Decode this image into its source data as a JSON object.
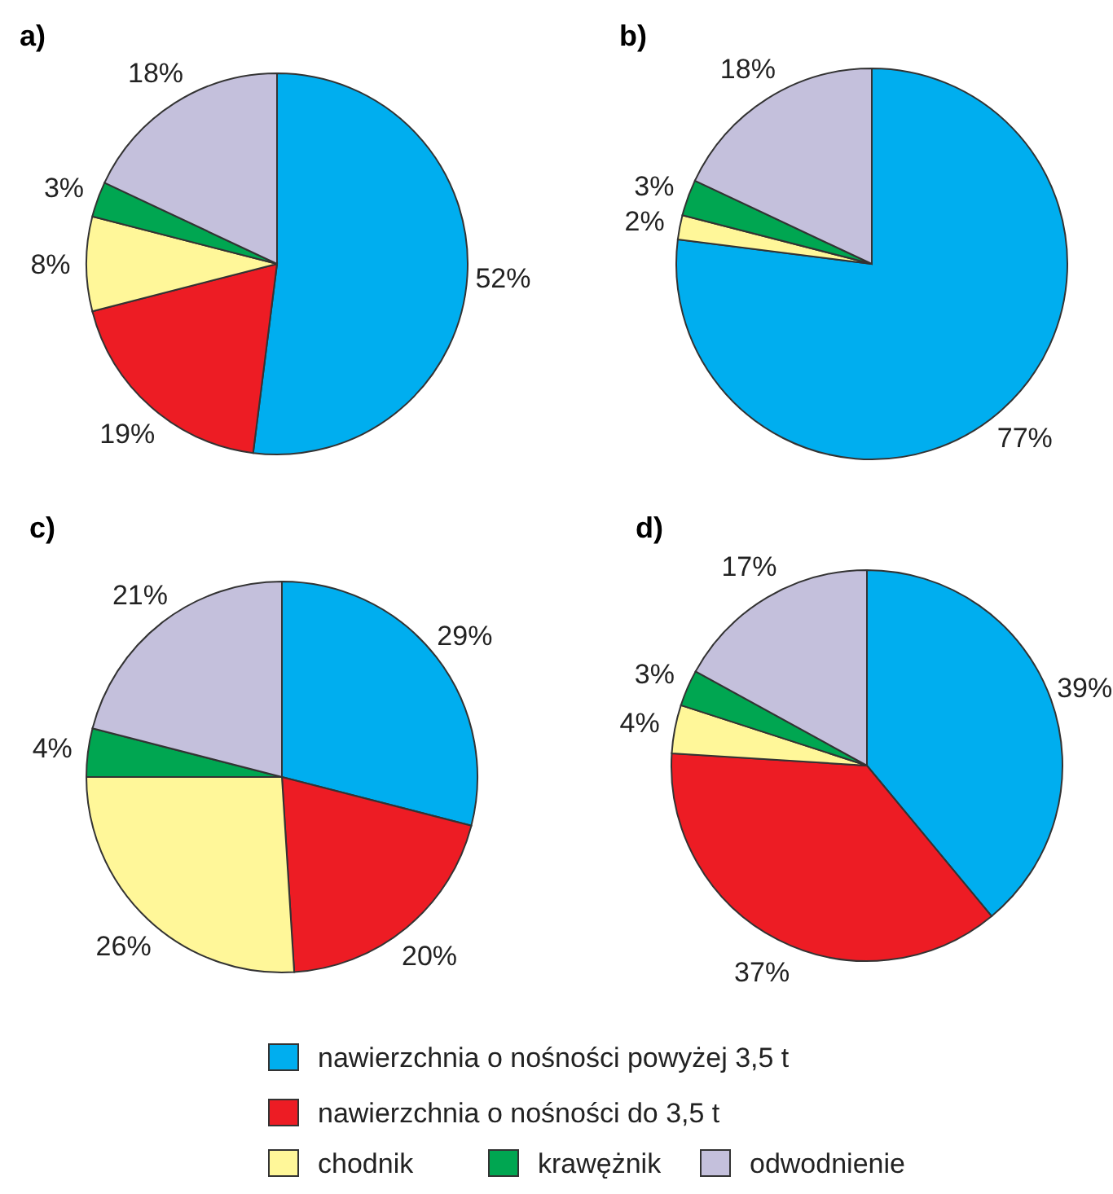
{
  "chart_data": [
    {
      "type": "pie",
      "title": "a)",
      "categories": [
        "nawierzchnia o nośności powyżej 3,5 t",
        "nawierzchnia o nośności do 3,5 t",
        "chodnik",
        "krawężnik",
        "odwodnienie"
      ],
      "values": [
        52,
        19,
        8,
        3,
        18
      ],
      "value_labels": [
        "52%",
        "19%",
        "8%",
        "3%",
        "18%"
      ],
      "colors": [
        "#00aeef",
        "#ed1c24",
        "#fff799",
        "#00a651",
        "#c4c0dc"
      ],
      "legend": "bottom"
    },
    {
      "type": "pie",
      "title": "b)",
      "categories": [
        null,
        null,
        null,
        null
      ],
      "values": [
        77,
        2,
        3,
        18
      ],
      "value_labels": [
        "77%",
        "2%",
        "3%",
        "18%"
      ],
      "colors": [
        "#00aeef",
        "#fff799",
        "#00a651",
        "#c4c0dc"
      ]
    },
    {
      "type": "pie",
      "title": "c)",
      "categories": [
        null,
        null,
        null,
        null,
        null
      ],
      "values": [
        29,
        20,
        26,
        4,
        21
      ],
      "value_labels": [
        "29%",
        "20%",
        "26%",
        "4%",
        "21%"
      ],
      "colors": [
        "#00aeef",
        "#ed1c24",
        "#fff799",
        "#00a651",
        "#c4c0dc"
      ]
    },
    {
      "type": "pie",
      "title": "d)",
      "categories": [
        null,
        null,
        null,
        null,
        null
      ],
      "values": [
        39,
        37,
        4,
        3,
        17
      ],
      "value_labels": [
        "39%",
        "37%",
        "4%",
        "3%",
        "17%"
      ],
      "colors": [
        "#00aeef",
        "#ed1c24",
        "#fff799",
        "#00a651",
        "#c4c0dc"
      ]
    }
  ]
}
